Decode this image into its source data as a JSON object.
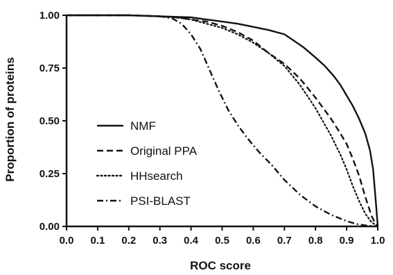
{
  "chart_data": {
    "type": "line",
    "title": "",
    "xlabel": "ROC score",
    "ylabel": "Proportion of proteins",
    "xlim": [
      0.0,
      1.0
    ],
    "ylim": [
      0.0,
      1.0
    ],
    "xticks": [
      "0.0",
      "0.1",
      "0.2",
      "0.3",
      "0.4",
      "0.5",
      "0.6",
      "0.7",
      "0.8",
      "0.9",
      "1.0"
    ],
    "yticks": [
      "0.00",
      "0.25",
      "0.50",
      "0.75",
      "1.00"
    ],
    "grid": false,
    "legend_position": "left",
    "series": [
      {
        "name": "NMF",
        "style": "solid",
        "x": [
          0.0,
          0.2,
          0.3,
          0.4,
          0.45,
          0.5,
          0.55,
          0.6,
          0.65,
          0.7,
          0.73,
          0.76,
          0.8,
          0.83,
          0.86,
          0.88,
          0.9,
          0.92,
          0.94,
          0.96,
          0.975,
          0.985,
          0.993,
          1.0
        ],
        "y": [
          1.0,
          1.0,
          0.995,
          0.99,
          0.98,
          0.97,
          0.96,
          0.945,
          0.93,
          0.91,
          0.88,
          0.85,
          0.8,
          0.76,
          0.71,
          0.67,
          0.62,
          0.57,
          0.51,
          0.44,
          0.36,
          0.27,
          0.13,
          0.0
        ]
      },
      {
        "name": "Original PPA",
        "style": "dashed",
        "x": [
          0.0,
          0.2,
          0.3,
          0.35,
          0.4,
          0.45,
          0.5,
          0.55,
          0.6,
          0.65,
          0.7,
          0.75,
          0.8,
          0.85,
          0.88,
          0.9,
          0.92,
          0.94,
          0.96,
          0.98,
          0.99,
          1.0
        ],
        "y": [
          1.0,
          1.0,
          0.995,
          0.99,
          0.98,
          0.97,
          0.95,
          0.92,
          0.88,
          0.82,
          0.77,
          0.7,
          0.61,
          0.51,
          0.44,
          0.39,
          0.32,
          0.24,
          0.14,
          0.05,
          0.02,
          0.0
        ]
      },
      {
        "name": "HHsearch",
        "style": "dotted",
        "x": [
          0.0,
          0.2,
          0.3,
          0.35,
          0.4,
          0.45,
          0.5,
          0.55,
          0.6,
          0.65,
          0.7,
          0.75,
          0.8,
          0.85,
          0.88,
          0.9,
          0.92,
          0.94,
          0.96,
          0.98,
          1.0
        ],
        "y": [
          1.0,
          1.0,
          0.995,
          0.99,
          0.98,
          0.96,
          0.94,
          0.91,
          0.87,
          0.82,
          0.76,
          0.67,
          0.56,
          0.43,
          0.34,
          0.27,
          0.19,
          0.12,
          0.06,
          0.02,
          0.0
        ]
      },
      {
        "name": "PSI-BLAST",
        "style": "dashdot",
        "x": [
          0.0,
          0.2,
          0.3,
          0.34,
          0.37,
          0.4,
          0.43,
          0.46,
          0.49,
          0.52,
          0.55,
          0.58,
          0.62,
          0.66,
          0.7,
          0.75,
          0.8,
          0.85,
          0.9,
          0.93,
          0.96,
          0.98,
          1.0
        ],
        "y": [
          1.0,
          1.0,
          0.995,
          0.985,
          0.96,
          0.91,
          0.84,
          0.74,
          0.64,
          0.55,
          0.48,
          0.42,
          0.35,
          0.29,
          0.22,
          0.15,
          0.095,
          0.055,
          0.025,
          0.012,
          0.005,
          0.002,
          0.0
        ]
      }
    ]
  }
}
